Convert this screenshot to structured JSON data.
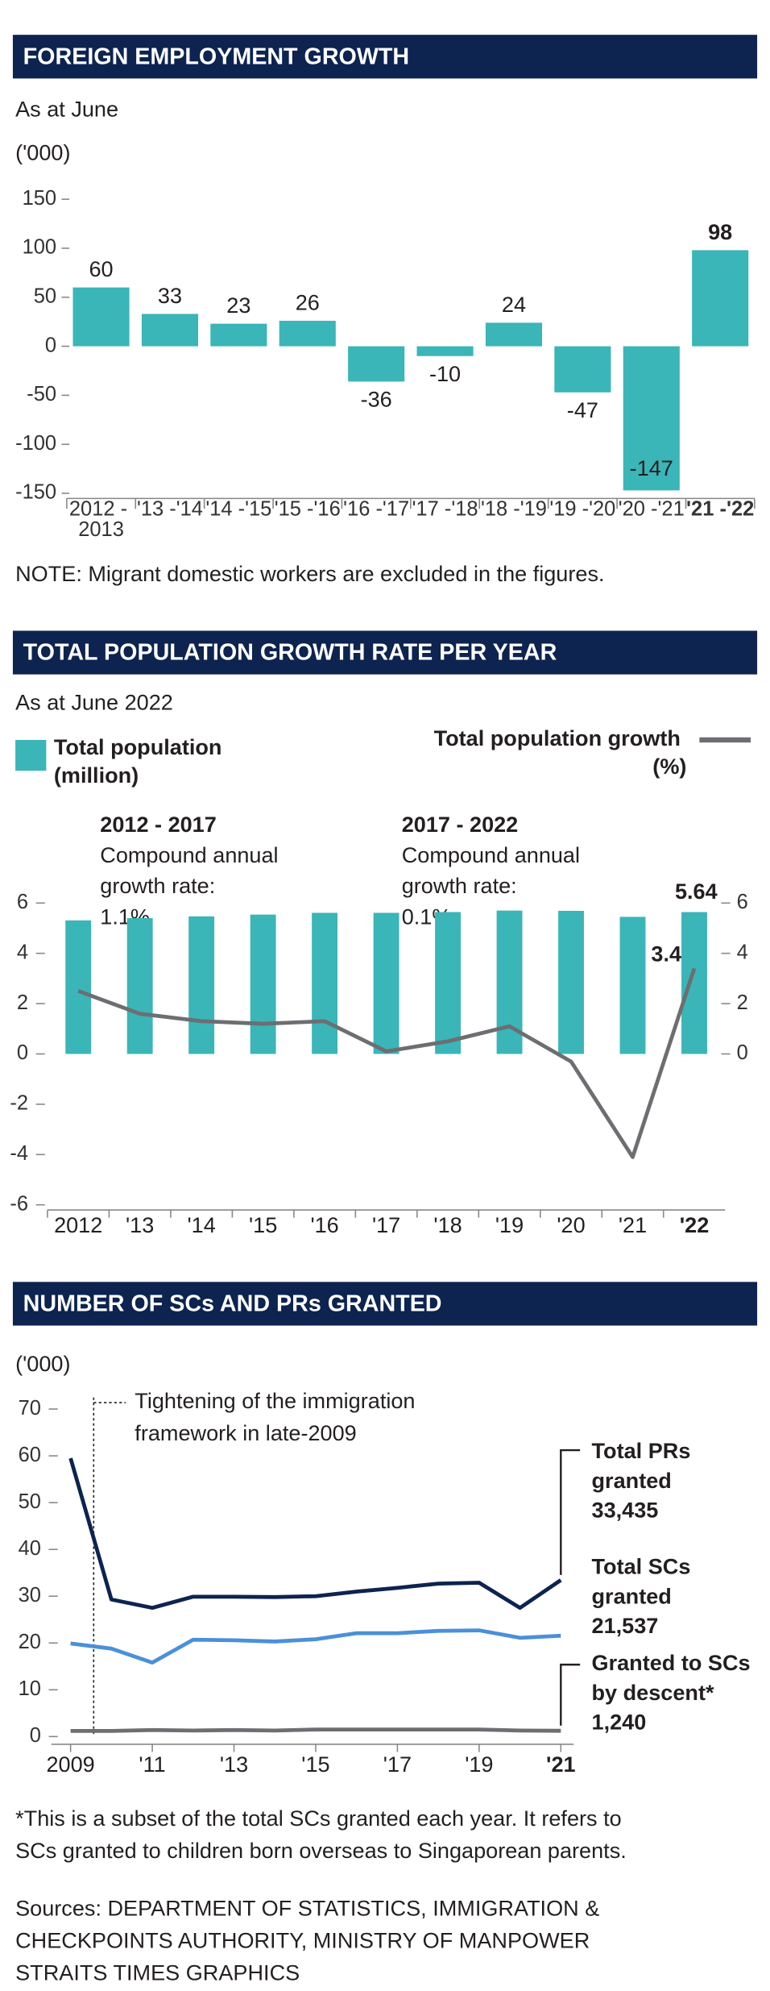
{
  "chart_data": [
    {
      "type": "bar",
      "title": "FOREIGN EMPLOYMENT GROWTH",
      "subtitle": "As at June",
      "unit": "('000)",
      "categories": [
        "2012 - 2013",
        "'13 -'14",
        "'14 -'15",
        "'15 -'16",
        "'16 -'17",
        "'17 -'18",
        "'18 -'19",
        "'19 -'20",
        "'20 -'21",
        "'21 -'22"
      ],
      "values": [
        60,
        33,
        23,
        26,
        -36,
        -10,
        24,
        -47,
        -147,
        98
      ],
      "color": "#3ab5b8",
      "ylim": [
        -150,
        150
      ],
      "yticks": [
        -150,
        -100,
        -50,
        0,
        50,
        100,
        150
      ],
      "grid": false,
      "note": "NOTE: Migrant domestic workers are excluded in the figures."
    },
    {
      "type": "combo",
      "title": "TOTAL POPULATION GROWTH RATE PER YEAR",
      "subtitle": "As at June 2022",
      "annotations": [
        {
          "title": "2012 - 2017",
          "text": "Compound annual growth rate: 1.1%"
        },
        {
          "title": "2017 - 2022",
          "text": "Compound annual growth rate: 0.1%"
        }
      ],
      "categories": [
        "2012",
        "'13",
        "'14",
        "'15",
        "'16",
        "'17",
        "'18",
        "'19",
        "'20",
        "'21",
        "'22"
      ],
      "series": [
        {
          "name": "Total population (million)",
          "type": "bar",
          "axis": "y2",
          "color": "#3ab5b8",
          "values": [
            5.31,
            5.4,
            5.47,
            5.54,
            5.61,
            5.61,
            5.64,
            5.7,
            5.69,
            5.45,
            5.64
          ]
        },
        {
          "name": "Total population growth (%)",
          "type": "line",
          "color": "#6d6e71",
          "values": [
            2.5,
            1.6,
            1.3,
            1.2,
            1.3,
            0.1,
            0.5,
            1.1,
            -0.3,
            -4.1,
            3.4
          ]
        }
      ],
      "ylim": [
        -6,
        6
      ],
      "yticks": [
        -6,
        -4,
        -2,
        0,
        2,
        4,
        6
      ],
      "y2lim": [
        -6,
        6
      ],
      "y2ticks": [
        0,
        2,
        4,
        6
      ],
      "grid": false
    },
    {
      "type": "line",
      "title": "NUMBER OF SCs AND PRs GRANTED",
      "unit": "('000)",
      "annotation": "Tightening of the immigration framework in late-2009",
      "x": [
        2009,
        2010,
        2011,
        2012,
        2013,
        2014,
        2015,
        2016,
        2017,
        2018,
        2019,
        2020,
        2021
      ],
      "series": [
        {
          "name": "Total PRs granted",
          "color": "#0d2350",
          "values": [
            59.5,
            29.3,
            27.5,
            29.9,
            29.9,
            29.8,
            30.0,
            31.0,
            31.8,
            32.7,
            32.9,
            27.5,
            33.435
          ],
          "value_labels": [
            null,
            null,
            null,
            null,
            null,
            null,
            null,
            null,
            null,
            null,
            null,
            null,
            "33,435"
          ]
        },
        {
          "name": "Total SCs granted",
          "color": "#4a90d9",
          "values": [
            19.9,
            18.8,
            15.8,
            20.7,
            20.6,
            20.3,
            20.8,
            22.1,
            22.1,
            22.6,
            22.7,
            21.1,
            21.537
          ],
          "value_labels": [
            null,
            null,
            null,
            null,
            null,
            null,
            null,
            null,
            null,
            null,
            null,
            null,
            "21,537"
          ]
        },
        {
          "name": "Granted to SCs by descent*",
          "color": "#6d6e71",
          "values": [
            1.2,
            1.2,
            1.4,
            1.3,
            1.4,
            1.3,
            1.5,
            1.5,
            1.5,
            1.5,
            1.5,
            1.3,
            1.24
          ],
          "value_labels": [
            null,
            null,
            null,
            null,
            null,
            null,
            null,
            null,
            null,
            null,
            null,
            null,
            "1,240"
          ]
        }
      ],
      "xlim": [
        2009,
        2021
      ],
      "xticks": [
        2009,
        {
          "value": 2011,
          "label": "'11"
        },
        {
          "value": 2013,
          "label": "'13"
        },
        {
          "value": 2015,
          "label": "'15"
        },
        {
          "value": 2017,
          "label": "'17"
        },
        {
          "value": 2019,
          "label": "'19"
        },
        {
          "value": 2021,
          "label": "'21"
        }
      ],
      "ylim": [
        0,
        70
      ],
      "yticks": [
        0,
        10,
        20,
        30,
        40,
        50,
        60,
        70
      ],
      "grid": false
    }
  ],
  "footnote": [
    "*This is a subset of the total SCs granted each year. It refers to",
    "SCs granted to children born overseas to Singaporean parents."
  ],
  "sources": [
    "Sources: DEPARTMENT OF STATISTICS, IMMIGRATION &",
    "CHECKPOINTS AUTHORITY, MINISTRY OF MANPOWER",
    "STRAITS TIMES GRAPHICS"
  ]
}
